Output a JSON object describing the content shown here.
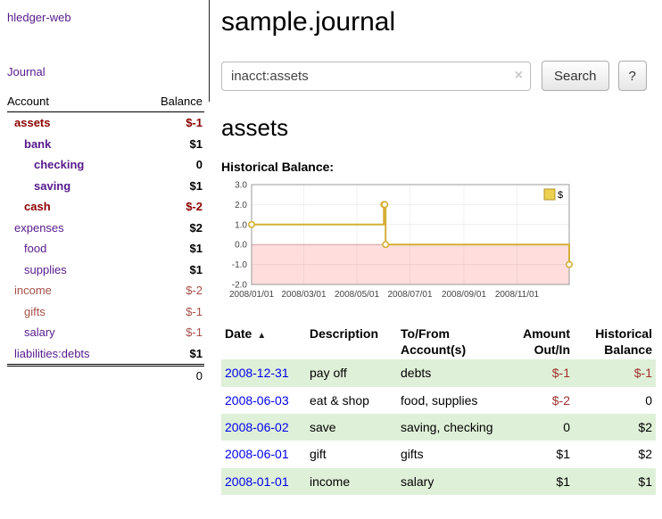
{
  "app": {
    "name": "hledger-web"
  },
  "sidebar": {
    "journal_link": "Journal",
    "table": {
      "col_account": "Account",
      "col_balance": "Balance",
      "rows": [
        {
          "name": "assets",
          "balance": "$-1",
          "indent": 1,
          "name_class": "neg-strong",
          "bal_class": "neg-strong"
        },
        {
          "name": "bank",
          "balance": "$1",
          "indent": 2,
          "name_class": "acct-strong",
          "bal_class": "strong"
        },
        {
          "name": "checking",
          "balance": "0",
          "indent": 3,
          "name_class": "acct-strong",
          "bal_class": "strong"
        },
        {
          "name": "saving",
          "balance": "$1",
          "indent": 3,
          "name_class": "acct-strong",
          "bal_class": "strong"
        },
        {
          "name": "cash",
          "balance": "$-2",
          "indent": 2,
          "name_class": "neg-strong",
          "bal_class": "neg-strong"
        },
        {
          "name": "expenses",
          "balance": "$2",
          "indent": 1,
          "name_class": "acct",
          "bal_class": "strong"
        },
        {
          "name": "food",
          "balance": "$1",
          "indent": 2,
          "name_class": "acct",
          "bal_class": "strong"
        },
        {
          "name": "supplies",
          "balance": "$1",
          "indent": 2,
          "name_class": "acct",
          "bal_class": "strong"
        },
        {
          "name": "income",
          "balance": "$-2",
          "indent": 1,
          "name_class": "neg",
          "bal_class": "neg"
        },
        {
          "name": "gifts",
          "balance": "$-1",
          "indent": 2,
          "name_class": "neg",
          "bal_class": "neg"
        },
        {
          "name": "salary",
          "balance": "$-1",
          "indent": 2,
          "name_class": "acct",
          "bal_class": "neg"
        },
        {
          "name": "liabilities:debts",
          "balance": "$1",
          "indent": 1,
          "name_class": "acct",
          "bal_class": "strong"
        }
      ],
      "total": "0"
    }
  },
  "header": {
    "title": "sample.journal"
  },
  "search": {
    "value": "inacct:assets",
    "clear_icon": "×",
    "button": "Search",
    "help_button": "?"
  },
  "account_page": {
    "heading": "assets",
    "chart_label": "Historical Balance:"
  },
  "chart_data": {
    "type": "line",
    "step": true,
    "title": "Historical Balance",
    "legend": "$",
    "legend_position": "top-right",
    "x_range": [
      "2008-01-01",
      "2008-12-31"
    ],
    "ylim": [
      -2,
      3
    ],
    "y_ticks": [
      3.0,
      2.0,
      1.0,
      0.0,
      -1.0,
      -2.0
    ],
    "x_ticks": [
      "2008/01/01",
      "2008/03/01",
      "2008/05/01",
      "2008/07/01",
      "2008/09/01",
      "2008/11/01"
    ],
    "series": [
      {
        "name": "$",
        "points": [
          [
            "2008-01-01",
            1
          ],
          [
            "2008-06-01",
            2
          ],
          [
            "2008-06-02",
            2
          ],
          [
            "2008-06-03",
            0
          ],
          [
            "2008-12-31",
            -1
          ]
        ]
      }
    ],
    "colors": {
      "line": "#d4af37",
      "negative_region": "#ffdddd"
    }
  },
  "register": {
    "columns": [
      "Date",
      "Description",
      "To/From Account(s)",
      "Amount Out/In",
      "Historical Balance"
    ],
    "sort_icon": "▲",
    "rows": [
      {
        "date": "2008-12-31",
        "description": "pay off",
        "accounts": "debts",
        "amount": "$-1",
        "balance": "$-1",
        "amount_neg": true,
        "balance_neg": true
      },
      {
        "date": "2008-06-03",
        "description": "eat & shop",
        "accounts": "food, supplies",
        "amount": "$-2",
        "balance": "0",
        "amount_neg": true,
        "balance_neg": false
      },
      {
        "date": "2008-06-02",
        "description": "save",
        "accounts": "saving, checking",
        "amount": "0",
        "balance": "$2",
        "amount_neg": false,
        "balance_neg": false
      },
      {
        "date": "2008-06-01",
        "description": "gift",
        "accounts": "gifts",
        "amount": "$1",
        "balance": "$2",
        "amount_neg": false,
        "balance_neg": false
      },
      {
        "date": "2008-01-01",
        "description": "income",
        "accounts": "salary",
        "amount": "$1",
        "balance": "$1",
        "amount_neg": false,
        "balance_neg": false
      }
    ]
  }
}
